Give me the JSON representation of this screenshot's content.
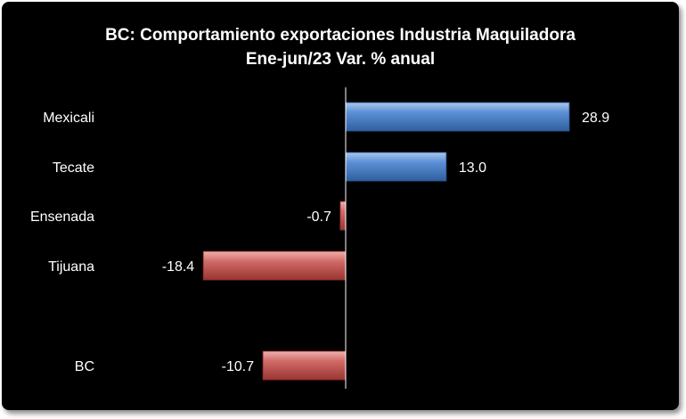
{
  "chart_data": {
    "type": "bar",
    "orientation": "horizontal",
    "title": "BC: Comportamiento exportaciones Industria Maquiladora",
    "subtitle": "Ene-jun/23 Var. % anual",
    "categories": [
      "Mexicali",
      "Tecate",
      "Ensenada",
      "Tijuana",
      "BC"
    ],
    "values": [
      28.9,
      13.0,
      -0.7,
      -18.4,
      -10.7
    ],
    "value_labels": [
      "28.9",
      "13.0",
      "-0.7",
      "-18.4",
      "-10.7"
    ],
    "xlim": [
      -18.4,
      28.9
    ],
    "grid": false,
    "legend": "none",
    "colors": {
      "positive": "#4f81bd",
      "negative": "#c0504d",
      "background": "#000000",
      "text": "#ffffff",
      "axis": "#ffffff"
    }
  }
}
